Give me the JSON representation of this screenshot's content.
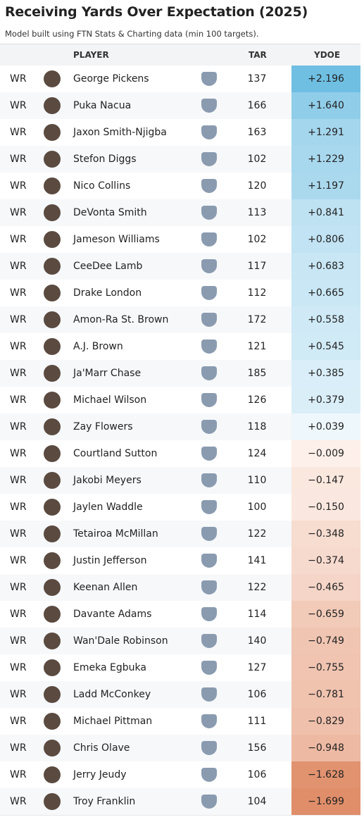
{
  "header": {
    "title": "Receiving Yards Over Expectation (2025)",
    "subtitle": "Model built using FTN Stats & Charting data (min 100 targets)."
  },
  "table": {
    "columns": [
      "PLAYER",
      "TAR",
      "YDOE"
    ],
    "rows": [
      [
        "WR",
        "George Pickens",
        "137",
        "+2.196"
      ],
      [
        "WR",
        "Puka Nacua",
        "166",
        "+1.640"
      ],
      [
        "WR",
        "Jaxon Smith-Njigba",
        "163",
        "+1.291"
      ],
      [
        "WR",
        "Stefon Diggs",
        "102",
        "+1.229"
      ],
      [
        "WR",
        "Nico Collins",
        "120",
        "+1.197"
      ],
      [
        "WR",
        "DeVonta Smith",
        "113",
        "+0.841"
      ],
      [
        "WR",
        "Jameson Williams",
        "102",
        "+0.806"
      ],
      [
        "WR",
        "CeeDee Lamb",
        "117",
        "+0.683"
      ],
      [
        "WR",
        "Drake London",
        "112",
        "+0.665"
      ],
      [
        "WR",
        "Amon-Ra St. Brown",
        "172",
        "+0.558"
      ],
      [
        "WR",
        "A.J. Brown",
        "121",
        "+0.545"
      ],
      [
        "WR",
        "Ja'Marr Chase",
        "185",
        "+0.385"
      ],
      [
        "WR",
        "Michael Wilson",
        "126",
        "+0.379"
      ],
      [
        "WR",
        "Zay Flowers",
        "118",
        "+0.039"
      ],
      [
        "WR",
        "Courtland Sutton",
        "124",
        "−0.009"
      ],
      [
        "WR",
        "Jakobi Meyers",
        "110",
        "−0.147"
      ],
      [
        "WR",
        "Jaylen Waddle",
        "100",
        "−0.150"
      ],
      [
        "WR",
        "Tetairoa McMillan",
        "122",
        "−0.348"
      ],
      [
        "WR",
        "Justin Jefferson",
        "141",
        "−0.374"
      ],
      [
        "WR",
        "Keenan Allen",
        "122",
        "−0.465"
      ],
      [
        "WR",
        "Davante Adams",
        "114",
        "−0.659"
      ],
      [
        "WR",
        "Wan'Dale Robinson",
        "140",
        "−0.749"
      ],
      [
        "WR",
        "Emeka Egbuka",
        "127",
        "−0.755"
      ],
      [
        "WR",
        "Ladd McConkey",
        "106",
        "−0.781"
      ],
      [
        "WR",
        "Michael Pittman",
        "111",
        "−0.829"
      ],
      [
        "WR",
        "Chris Olave",
        "156",
        "−0.948"
      ],
      [
        "WR",
        "Jerry Jeudy",
        "106",
        "−1.628"
      ],
      [
        "WR",
        "Troy Franklin",
        "104",
        "−1.699"
      ]
    ]
  }
}
